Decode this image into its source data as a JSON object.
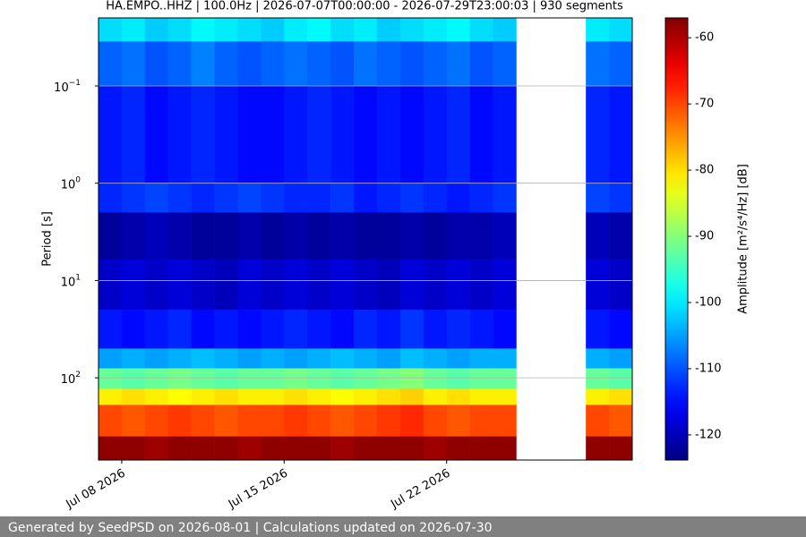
{
  "chart_data": {
    "type": "spectrogram",
    "title": "HA.EMPO..HHZ | 100.0Hz | 2026-07-07T00:00:00 - 2026-07-29T23:00:03 | 930 segments",
    "y_label": "Period [s]",
    "colorbar_label": "Amplitude [m²/s⁴/Hz] [dB]",
    "footer": "Generated by SeedPSD on 2026-08-01 | Calculations updated on 2026-07-30",
    "x": [
      "2026-07-07",
      "2026-07-08",
      "2026-07-09",
      "2026-07-10",
      "2026-07-11",
      "2026-07-12",
      "2026-07-13",
      "2026-07-14",
      "2026-07-15",
      "2026-07-16",
      "2026-07-17",
      "2026-07-18",
      "2026-07-19",
      "2026-07-20",
      "2026-07-21",
      "2026-07-22",
      "2026-07-23",
      "2026-07-24",
      "2026-07-25",
      "2026-07-26",
      "2026-07-27",
      "2026-07-28",
      "2026-07-29"
    ],
    "xlim": [
      "2026-07-07",
      "2026-07-30"
    ],
    "xticks": [
      {
        "value": "2026-07-08",
        "label": "Jul 08 2026"
      },
      {
        "value": "2026-07-15",
        "label": "Jul 15 2026"
      },
      {
        "value": "2026-07-22",
        "label": "Jul 22 2026"
      }
    ],
    "period_edges": [
      0.02,
      0.035,
      0.1,
      1,
      2,
      6,
      20,
      50,
      80,
      130,
      190,
      400,
      700
    ],
    "ylim": [
      0.02,
      700
    ],
    "y_log": true,
    "y_inverted": true,
    "yticks": [
      {
        "value": 0.1,
        "label": "10",
        "exponent": "−1"
      },
      {
        "value": 1,
        "label": "10",
        "exponent": "0"
      },
      {
        "value": 10,
        "label": "10",
        "exponent": "1"
      },
      {
        "value": 100,
        "label": "10",
        "exponent": "2"
      }
    ],
    "grid": true,
    "colormap": "jet",
    "clim": [
      -123.8,
      -57
    ],
    "cticks": [
      -60,
      -70,
      -80,
      -90,
      -100,
      -110,
      -120
    ],
    "z": [
      [
        -101,
        -100,
        -102,
        -101,
        -99,
        -100,
        -101,
        -102,
        -100,
        -99,
        -101,
        -100,
        -102,
        -101,
        -100,
        -99,
        -101,
        -102,
        null,
        null,
        null,
        -100,
        -101
      ],
      [
        -109,
        -108,
        -110,
        -109,
        -107,
        -109,
        -110,
        -109,
        -108,
        -109,
        -110,
        -108,
        -109,
        -110,
        -109,
        -108,
        -110,
        -109,
        null,
        null,
        null,
        -108,
        -109
      ],
      [
        -114,
        -113,
        -115,
        -114,
        -113,
        -114,
        -115,
        -115,
        -114,
        -113,
        -114,
        -115,
        -114,
        -115,
        -114,
        -113,
        -115,
        -114,
        null,
        null,
        null,
        -113,
        -114
      ],
      [
        -113,
        -112,
        -111,
        -112,
        -113,
        -112,
        -111,
        -112,
        -113,
        -113,
        -112,
        -114,
        -113,
        -112,
        -113,
        -114,
        -113,
        -112,
        null,
        null,
        null,
        -111,
        -112
      ],
      [
        -122,
        -121,
        -120,
        -121,
        -122,
        -122,
        -121,
        -122,
        -121,
        -122,
        -121,
        -122,
        -122,
        -121,
        -122,
        -121,
        -121,
        -120,
        null,
        null,
        null,
        -120,
        -121
      ],
      [
        -119,
        -118,
        -119,
        -118,
        -119,
        -120,
        -118,
        -119,
        -118,
        -119,
        -118,
        -119,
        -120,
        -118,
        -119,
        -118,
        -119,
        -118,
        null,
        null,
        null,
        -118,
        -119
      ],
      [
        -114,
        -115,
        -114,
        -113,
        -115,
        -114,
        -115,
        -114,
        -113,
        -114,
        -115,
        -113,
        -114,
        -112,
        -114,
        -113,
        -114,
        -115,
        null,
        null,
        null,
        -114,
        -115
      ],
      [
        -105,
        -104,
        -105,
        -104,
        -103,
        -104,
        -105,
        -104,
        -105,
        -104,
        -103,
        -104,
        -105,
        -103,
        -104,
        -105,
        -104,
        -104,
        null,
        null,
        null,
        -104,
        -105
      ],
      [
        -92,
        -93,
        -92,
        -91,
        -92,
        -93,
        -92,
        -92,
        -91,
        -92,
        -93,
        -92,
        -91,
        -90,
        -92,
        -93,
        -92,
        -92,
        null,
        null,
        null,
        -92,
        -93
      ],
      [
        -81,
        -80,
        -81,
        -82,
        -81,
        -80,
        -81,
        -81,
        -80,
        -81,
        -82,
        -81,
        -80,
        -79,
        -81,
        -80,
        -81,
        -81,
        null,
        null,
        null,
        -81,
        -80
      ],
      [
        -70,
        -71,
        -70,
        -69,
        -70,
        -71,
        -70,
        -70,
        -69,
        -70,
        -71,
        -70,
        -69,
        -68,
        -70,
        -71,
        -70,
        -70,
        null,
        null,
        null,
        -70,
        -71
      ],
      [
        -58,
        -58,
        -59,
        -58,
        -58,
        -58,
        -59,
        -58,
        -58,
        -58,
        -59,
        -58,
        -58,
        -58,
        -59,
        -58,
        -58,
        -58,
        null,
        null,
        null,
        -58,
        -58
      ]
    ]
  }
}
